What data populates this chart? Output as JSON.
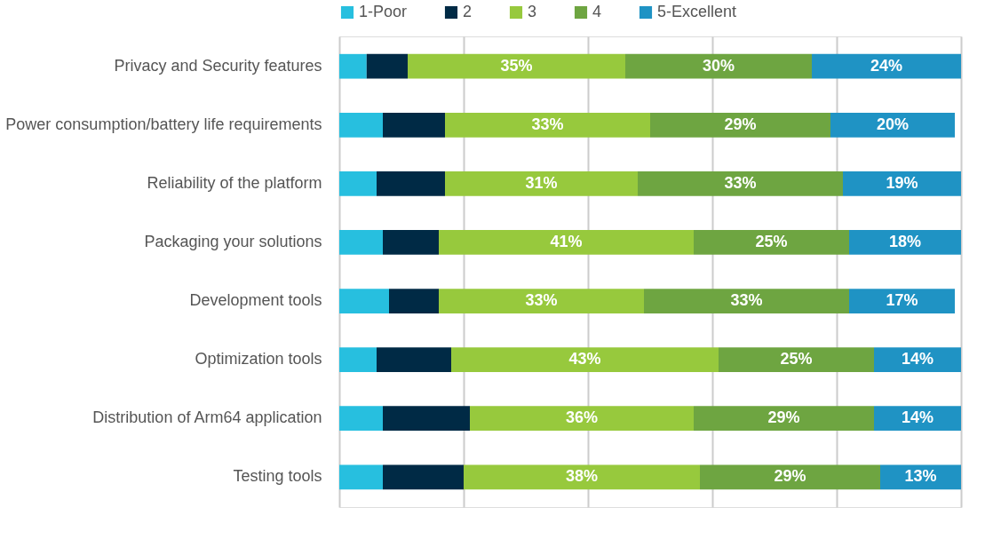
{
  "chart_data": {
    "type": "bar",
    "orientation": "horizontal",
    "stacked": true,
    "categories": [
      "Privacy and Security features",
      "Power consumption/battery life requirements",
      "Reliability of the platform",
      "Packaging your solutions",
      "Development tools",
      "Optimization tools",
      "Distribution of Arm64 application",
      "Testing tools"
    ],
    "series": [
      {
        "name": "1-Poor",
        "color": "#27bfdf",
        "values": [
          4.4,
          7,
          6,
          7,
          8,
          6,
          7,
          7
        ]
      },
      {
        "name": "2",
        "color": "#002a45",
        "values": [
          6.6,
          10,
          11,
          9,
          8,
          12,
          14,
          13
        ]
      },
      {
        "name": "3",
        "color": "#97c93d",
        "values": [
          35,
          33,
          31,
          41,
          33,
          43,
          36,
          38
        ],
        "value_labels": [
          "35%",
          "33%",
          "31%",
          "41%",
          "33%",
          "43%",
          "36%",
          "38%"
        ]
      },
      {
        "name": "4",
        "color": "#6ea541",
        "values": [
          30,
          29,
          33,
          25,
          33,
          25,
          29,
          29
        ],
        "value_labels": [
          "30%",
          "29%",
          "33%",
          "25%",
          "33%",
          "25%",
          "29%",
          "29%"
        ]
      },
      {
        "name": "5-Excellent",
        "color": "#1f93c4",
        "values": [
          24,
          20,
          19,
          18,
          17,
          14,
          14,
          13
        ],
        "value_labels": [
          "24%",
          "20%",
          "19%",
          "18%",
          "17%",
          "14%",
          "14%",
          "13%"
        ]
      }
    ],
    "xlim": [
      0,
      100
    ],
    "xticks": [
      {
        "value": 0,
        "label": null
      },
      {
        "value": 20,
        "label": null
      },
      {
        "value": 40,
        "label": null
      },
      {
        "value": 60,
        "label": null
      },
      {
        "value": 80,
        "label": null
      },
      {
        "value": 100,
        "label": null
      }
    ],
    "tick_labels": "y",
    "grid": "x",
    "legend": "top"
  }
}
